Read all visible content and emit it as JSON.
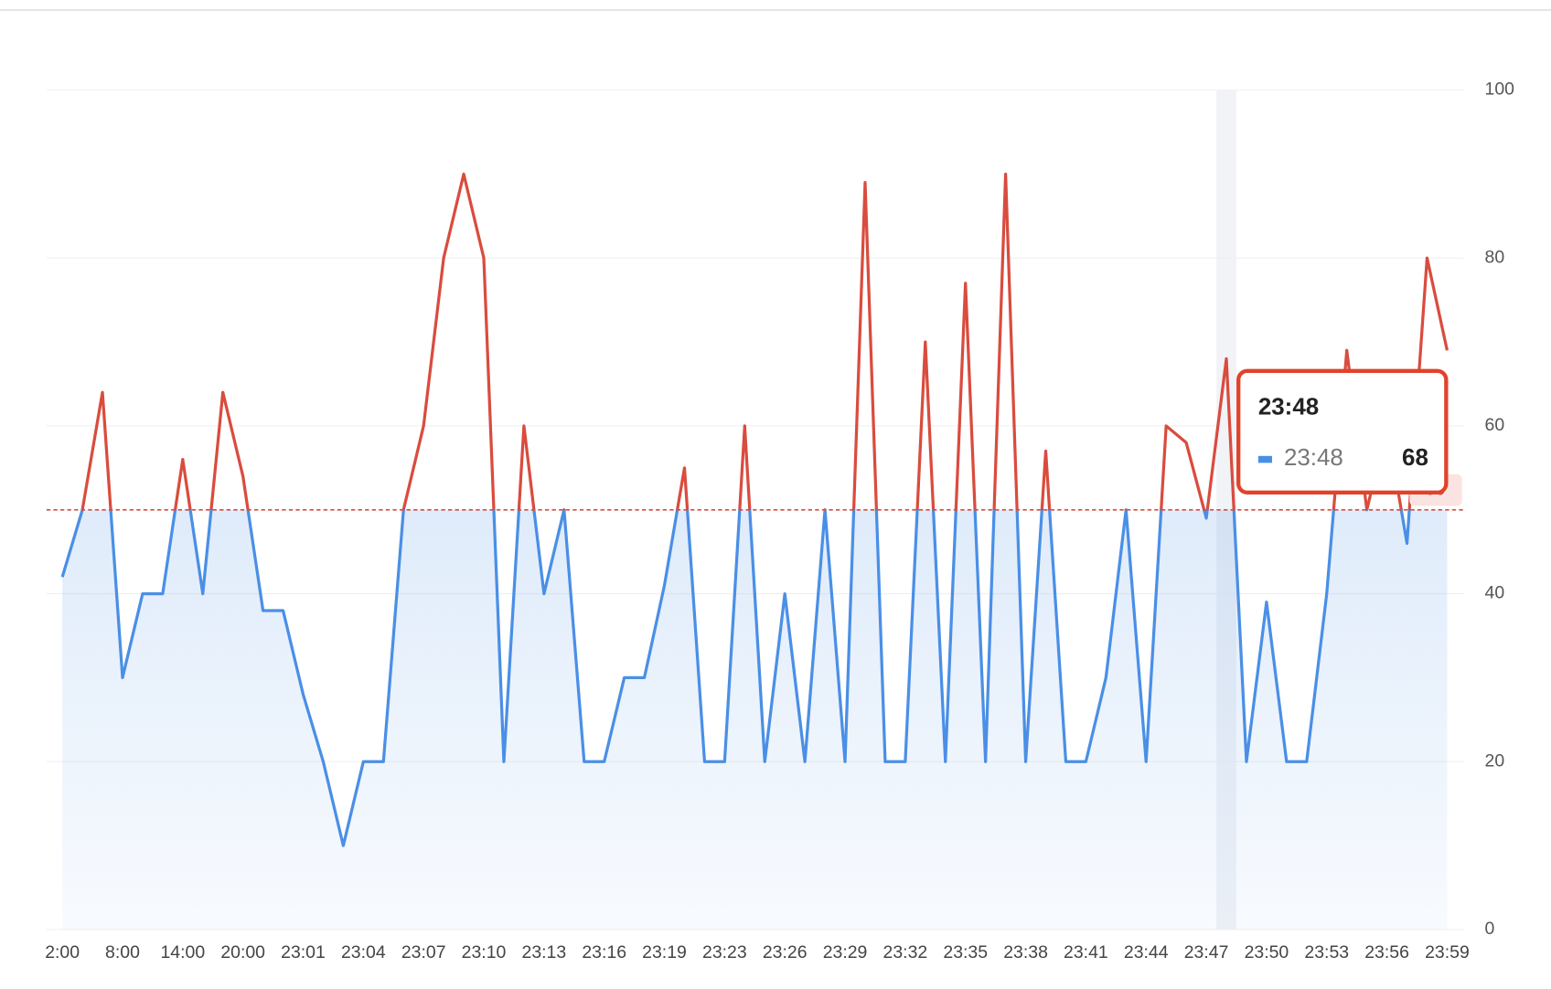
{
  "chart_data": {
    "type": "line",
    "categories": [
      "2:00",
      null,
      null,
      "8:00",
      null,
      null,
      "14:00",
      null,
      null,
      "20:00",
      null,
      null,
      "23:01",
      null,
      null,
      "23:04",
      null,
      null,
      "23:07",
      null,
      null,
      "23:10",
      null,
      null,
      "23:13",
      null,
      null,
      "23:16",
      null,
      null,
      "23:19",
      null,
      null,
      "23:23",
      null,
      null,
      "23:26",
      null,
      null,
      "23:29",
      null,
      null,
      "23:32",
      null,
      null,
      "23:35",
      null,
      null,
      "23:38",
      null,
      null,
      "23:41",
      null,
      null,
      "23:44",
      null,
      null,
      "23:47",
      "23:48",
      null,
      "23:50",
      null,
      null,
      "23:53",
      null,
      null,
      "23:56",
      null,
      null,
      "23:59"
    ],
    "xtick_interval": 3,
    "series": [
      {
        "color": "#4a8fe6",
        "values": [
          42,
          50,
          64,
          30,
          40,
          40,
          56,
          40,
          64,
          54,
          38,
          38,
          28,
          20,
          10,
          20,
          20,
          50,
          60,
          80,
          90,
          80,
          20,
          60,
          40,
          50,
          20,
          20,
          30,
          30,
          41,
          55,
          20,
          20,
          60,
          20,
          40,
          20,
          50,
          20,
          89,
          20,
          20,
          70,
          20,
          77,
          20,
          90,
          20,
          57,
          20,
          20,
          30,
          50,
          20,
          60,
          58,
          49,
          68,
          20,
          39,
          20,
          20,
          40,
          69,
          50,
          60,
          46,
          80,
          69
        ]
      }
    ],
    "ylim": [
      0,
      100
    ],
    "yticks": [
      0,
      20,
      40,
      60,
      80,
      100
    ],
    "grid": true,
    "mark_line": {
      "value": 50,
      "color": "#d94c3e"
    },
    "tooltip": {
      "index": 58
    }
  }
}
